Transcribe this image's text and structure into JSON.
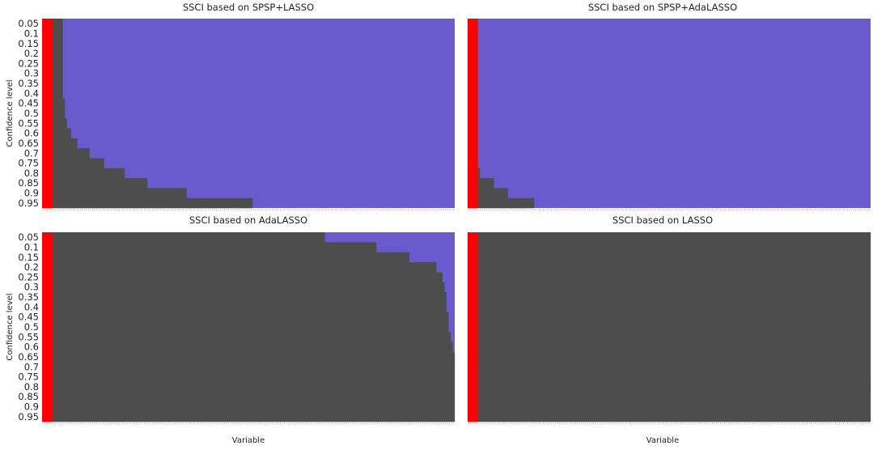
{
  "chart_data": [
    {
      "type": "heatmap",
      "title": "SSCI based on SPSP+LASSO",
      "xlabel": "",
      "ylabel": "Confidence level",
      "y_categories": [
        "0.05",
        "0.1",
        "0.15",
        "0.2",
        "0.25",
        "0.3",
        "0.35",
        "0.4",
        "0.45",
        "0.5",
        "0.55",
        "0.6",
        "0.65",
        "0.7",
        "0.75",
        "0.8",
        "0.85",
        "0.9",
        "0.95"
      ],
      "n_variables": 200,
      "true_variables": 5,
      "selected_width_per_level": [
        10,
        10,
        10,
        10,
        10,
        10,
        10,
        10,
        11,
        11,
        12,
        14,
        17,
        23,
        30,
        40,
        51,
        70,
        102
      ],
      "colors": {
        "true": "#ff0000",
        "selected": "#4d4d4d",
        "not_selected": "#6a5acd"
      }
    },
    {
      "type": "heatmap",
      "title": "SSCI based on SPSP+AdaLASSO",
      "xlabel": "",
      "ylabel": "",
      "y_categories": [
        "0.05",
        "0.1",
        "0.15",
        "0.2",
        "0.25",
        "0.3",
        "0.35",
        "0.4",
        "0.45",
        "0.5",
        "0.55",
        "0.6",
        "0.65",
        "0.7",
        "0.75",
        "0.8",
        "0.85",
        "0.9",
        "0.95"
      ],
      "n_variables": 200,
      "true_variables": 5,
      "selected_width_per_level": [
        5,
        5,
        5,
        5,
        5,
        5,
        5,
        5,
        5,
        5,
        5,
        5,
        5,
        5,
        5,
        6,
        13,
        20,
        33
      ],
      "colors": {
        "true": "#ff0000",
        "selected": "#4d4d4d",
        "not_selected": "#6a5acd"
      }
    },
    {
      "type": "heatmap",
      "title": "SSCI based on AdaLASSO",
      "xlabel": "Variable",
      "ylabel": "Confidence level",
      "y_categories": [
        "0.05",
        "0.1",
        "0.15",
        "0.2",
        "0.25",
        "0.3",
        "0.35",
        "0.4",
        "0.45",
        "0.5",
        "0.55",
        "0.6",
        "0.65",
        "0.7",
        "0.75",
        "0.8",
        "0.85",
        "0.9",
        "0.95"
      ],
      "n_variables": 200,
      "true_variables": 5,
      "selected_width_per_level": [
        137,
        162,
        178,
        191,
        194,
        195,
        196,
        196,
        197,
        197,
        198,
        199,
        200,
        200,
        200,
        200,
        200,
        200,
        200
      ],
      "colors": {
        "true": "#ff0000",
        "selected": "#4d4d4d",
        "not_selected": "#6a5acd"
      }
    },
    {
      "type": "heatmap",
      "title": "SSCI based on LASSO",
      "xlabel": "Variable",
      "ylabel": "",
      "y_categories": [
        "0.05",
        "0.1",
        "0.15",
        "0.2",
        "0.25",
        "0.3",
        "0.35",
        "0.4",
        "0.45",
        "0.5",
        "0.55",
        "0.6",
        "0.65",
        "0.7",
        "0.75",
        "0.8",
        "0.85",
        "0.9",
        "0.95"
      ],
      "n_variables": 200,
      "true_variables": 5,
      "selected_width_per_level": [
        200,
        200,
        200,
        200,
        200,
        200,
        200,
        200,
        200,
        200,
        200,
        200,
        200,
        200,
        200,
        200,
        200,
        200,
        200
      ],
      "colors": {
        "true": "#ff0000",
        "selected": "#4d4d4d",
        "not_selected": "#6a5acd"
      }
    }
  ]
}
